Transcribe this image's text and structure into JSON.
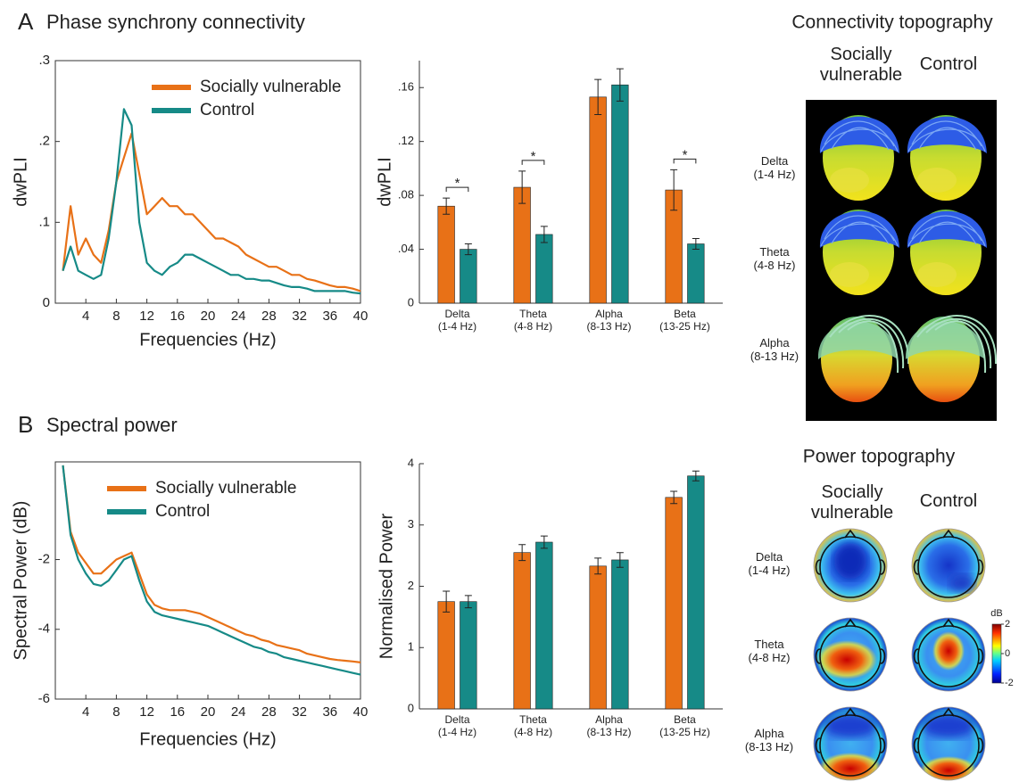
{
  "panels": [
    {
      "label": "A",
      "title": "Phase synchrony connectivity"
    },
    {
      "label": "B",
      "title": "Spectral power"
    }
  ],
  "chart_data": [
    {
      "type": "line",
      "xlabel": "Frequencies (Hz)",
      "ylabel": "dwPLI",
      "x": [
        1,
        2,
        3,
        4,
        5,
        6,
        7,
        8,
        9,
        10,
        11,
        12,
        13,
        14,
        15,
        16,
        17,
        18,
        19,
        20,
        21,
        22,
        23,
        24,
        25,
        26,
        27,
        28,
        29,
        30,
        31,
        32,
        33,
        34,
        35,
        36,
        37,
        38,
        39,
        40
      ],
      "xlim": [
        0,
        40
      ],
      "xticks": [
        4,
        8,
        12,
        16,
        20,
        24,
        28,
        32,
        36,
        40
      ],
      "ylim": [
        0,
        0.3
      ],
      "yticks": [
        0,
        {
          "value": 0.1,
          "label": ".1"
        },
        {
          "value": 0.2,
          "label": ".2"
        },
        {
          "value": 0.3,
          "label": ".3"
        }
      ],
      "legend": "upper left",
      "series": [
        {
          "name": "Socially vulnerable",
          "color": "#e87117",
          "values": [
            0.04,
            0.12,
            0.06,
            0.08,
            0.06,
            0.05,
            0.09,
            0.15,
            0.18,
            0.21,
            0.16,
            0.11,
            0.12,
            0.13,
            0.12,
            0.12,
            0.11,
            0.11,
            0.1,
            0.09,
            0.08,
            0.08,
            0.075,
            0.07,
            0.06,
            0.055,
            0.05,
            0.045,
            0.045,
            0.04,
            0.035,
            0.035,
            0.03,
            0.028,
            0.025,
            0.022,
            0.02,
            0.02,
            0.018,
            0.015
          ]
        },
        {
          "name": "Control",
          "color": "#168a87",
          "values": [
            0.04,
            0.07,
            0.04,
            0.035,
            0.03,
            0.035,
            0.08,
            0.15,
            0.24,
            0.22,
            0.1,
            0.05,
            0.04,
            0.035,
            0.045,
            0.05,
            0.06,
            0.06,
            0.055,
            0.05,
            0.045,
            0.04,
            0.035,
            0.035,
            0.03,
            0.03,
            0.028,
            0.028,
            0.025,
            0.022,
            0.02,
            0.02,
            0.018,
            0.015,
            0.015,
            0.015,
            0.015,
            0.015,
            0.013,
            0.012
          ]
        }
      ]
    },
    {
      "type": "bar",
      "ylabel": "dwPLI",
      "categories": [
        "Delta\n(1-4 Hz)",
        "Theta\n(4-8 Hz)",
        "Alpha\n(8-13 Hz)",
        "Beta\n(13-25 Hz)"
      ],
      "ylim": [
        0,
        0.18
      ],
      "yticks": [
        0,
        {
          "value": 0.04,
          "label": ".04"
        },
        {
          "value": 0.08,
          "label": ".08"
        },
        {
          "value": 0.12,
          "label": ".12"
        },
        {
          "value": 0.16,
          "label": ".16"
        }
      ],
      "significance": [
        "*",
        "*",
        null,
        "*"
      ],
      "series": [
        {
          "color": "#e87117",
          "values": [
            0.072,
            0.086,
            0.153,
            0.084
          ],
          "errors": [
            0.006,
            0.012,
            0.013,
            0.015
          ]
        },
        {
          "color": "#168a87",
          "values": [
            0.04,
            0.051,
            0.162,
            0.044
          ],
          "errors": [
            0.004,
            0.006,
            0.012,
            0.004
          ]
        }
      ]
    },
    {
      "type": "line",
      "xlabel": "Frequencies (Hz)",
      "ylabel": "Spectral Power (dB)",
      "x": [
        1,
        2,
        3,
        4,
        5,
        6,
        7,
        8,
        9,
        10,
        11,
        12,
        13,
        14,
        15,
        16,
        17,
        18,
        19,
        20,
        21,
        22,
        23,
        24,
        25,
        26,
        27,
        28,
        29,
        30,
        31,
        32,
        33,
        34,
        35,
        36,
        37,
        38,
        39,
        40
      ],
      "xlim": [
        0,
        40
      ],
      "xticks": [
        4,
        8,
        12,
        16,
        20,
        24,
        28,
        32,
        36,
        40
      ],
      "ylim": [
        -6,
        0.8
      ],
      "yticks": [
        -6,
        -4,
        -2
      ],
      "legend": "upper left",
      "series": [
        {
          "name": "Socially vulnerable",
          "color": "#e87117",
          "values": [
            0.7,
            -1.2,
            -1.8,
            -2.1,
            -2.4,
            -2.4,
            -2.2,
            -2.0,
            -1.9,
            -1.8,
            -2.4,
            -3.0,
            -3.3,
            -3.4,
            -3.45,
            -3.45,
            -3.45,
            -3.5,
            -3.55,
            -3.65,
            -3.75,
            -3.85,
            -3.95,
            -4.05,
            -4.15,
            -4.2,
            -4.3,
            -4.35,
            -4.45,
            -4.5,
            -4.55,
            -4.6,
            -4.7,
            -4.75,
            -4.8,
            -4.85,
            -4.88,
            -4.9,
            -4.92,
            -4.95
          ]
        },
        {
          "name": "Control",
          "color": "#168a87",
          "values": [
            0.7,
            -1.3,
            -2.0,
            -2.4,
            -2.7,
            -2.75,
            -2.6,
            -2.3,
            -2.0,
            -1.9,
            -2.6,
            -3.2,
            -3.5,
            -3.6,
            -3.65,
            -3.7,
            -3.75,
            -3.8,
            -3.85,
            -3.9,
            -4.0,
            -4.1,
            -4.2,
            -4.3,
            -4.4,
            -4.5,
            -4.55,
            -4.65,
            -4.7,
            -4.8,
            -4.85,
            -4.9,
            -4.95,
            -5.0,
            -5.05,
            -5.1,
            -5.15,
            -5.2,
            -5.25,
            -5.3
          ]
        }
      ]
    },
    {
      "type": "bar",
      "ylabel": "Normalised Power",
      "categories": [
        "Delta\n(1-4 Hz)",
        "Theta\n(4-8 Hz)",
        "Alpha\n(8-13 Hz)",
        "Beta\n(13-25 Hz)"
      ],
      "ylim": [
        0,
        4
      ],
      "yticks": [
        0,
        1,
        2,
        3,
        4
      ],
      "series": [
        {
          "color": "#e87117",
          "values": [
            1.75,
            2.55,
            2.33,
            3.45
          ],
          "errors": [
            0.17,
            0.13,
            0.13,
            0.1
          ]
        },
        {
          "color": "#168a87",
          "values": [
            1.75,
            2.72,
            2.43,
            3.8
          ],
          "errors": [
            0.1,
            0.1,
            0.12,
            0.08
          ]
        }
      ]
    }
  ],
  "connectivity_topography": {
    "title": "Connectivity topography",
    "columns": [
      "Socially\nvulnerable",
      "Control"
    ],
    "rows": [
      "Delta\n(1-4 Hz)",
      "Theta\n(4-8 Hz)",
      "Alpha\n(8-13 Hz)"
    ]
  },
  "power_topography": {
    "title": "Power topography",
    "columns": [
      "Socially\nvulnerable",
      "Control"
    ],
    "rows": [
      "Delta\n(1-4 Hz)",
      "Theta\n(4-8 Hz)",
      "Alpha\n(8-13 Hz)"
    ],
    "colorbar": {
      "label": "dB",
      "lim": [
        -2,
        2
      ],
      "ticks": [
        2,
        0,
        -2
      ]
    }
  }
}
